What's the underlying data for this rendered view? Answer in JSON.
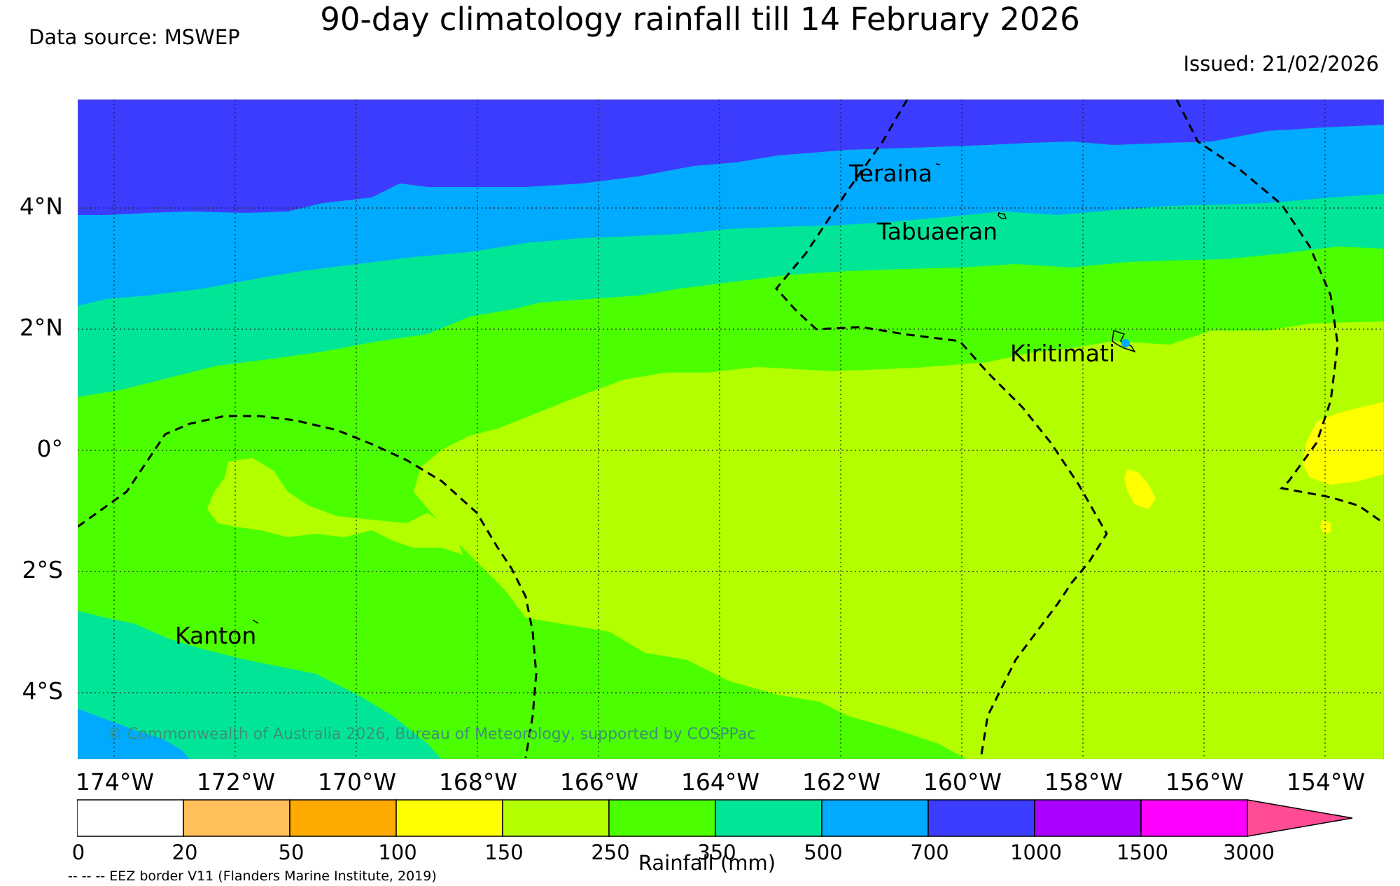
{
  "header": {
    "title": "90-day climatology rainfall till 14 February 2026",
    "data_source": "Data source: MSWEP",
    "issued": "Issued: 21/02/2026"
  },
  "map": {
    "lat_labels": [
      "4°N",
      "2°N",
      "0°",
      "2°S",
      "4°S"
    ],
    "lon_labels": [
      "174°W",
      "172°W",
      "170°W",
      "168°W",
      "166°W",
      "164°W",
      "162°W",
      "160°W",
      "158°W",
      "156°W",
      "154°W"
    ],
    "places": {
      "teraina": "Teraina",
      "tabuaeran": "Tabuaeran",
      "kiritimati": "Kiritimati",
      "kanton": "Kanton"
    },
    "copyright": "© Commonwealth of Australia 2026, Bureau of Meteorology, supported by COSPPac",
    "grid": true
  },
  "colorbar": {
    "labels": [
      "0",
      "20",
      "50",
      "100",
      "150",
      "250",
      "350",
      "500",
      "700",
      "1000",
      "1500",
      "3000"
    ],
    "colors": [
      "#ffffff",
      "#ffbf5a",
      "#ffaa00",
      "#ffff00",
      "#b3ff00",
      "#4cff00",
      "#00e696",
      "#00aaff",
      "#3c3cff",
      "#aa00ff",
      "#ff00ff",
      "#ff4b96"
    ],
    "unit_label": "Rainfall (mm)",
    "extend": "max"
  },
  "footer": {
    "eez_note": "-- -- -- EEZ border V11 (Flanders Marine Institute, 2019)"
  }
}
